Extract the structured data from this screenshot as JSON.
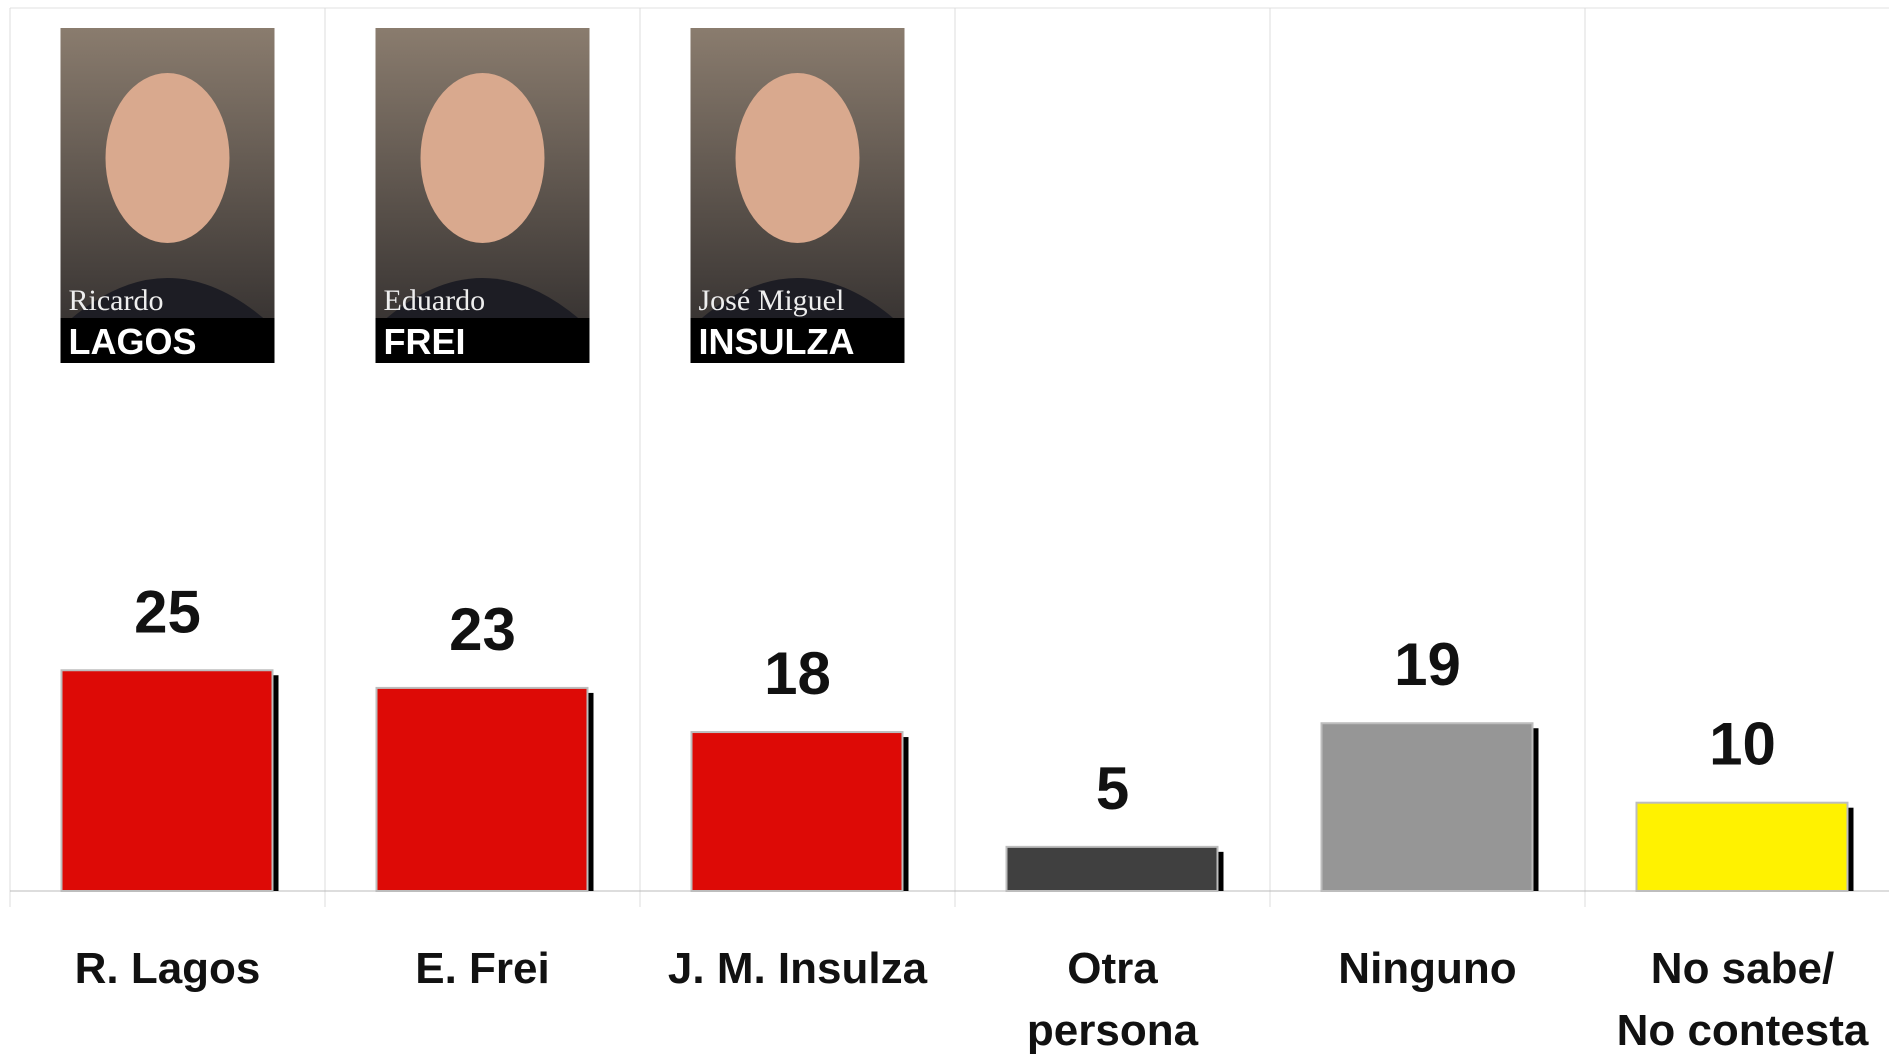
{
  "chart_data": {
    "type": "bar",
    "categories": [
      "R. Lagos",
      "E. Frei",
      "J. M. Insulza",
      "Otra\npersona",
      "Ninguno",
      "No sabe/\nNo contesta"
    ],
    "values": [
      25,
      23,
      18,
      5,
      19,
      10
    ],
    "colors": [
      "#dd0a06",
      "#dd0a06",
      "#dd0a06",
      "#404040",
      "#969696",
      "#fff200"
    ],
    "ylim": [
      0,
      100
    ],
    "photos": [
      {
        "first": "Ricardo",
        "last": "LAGOS"
      },
      {
        "first": "Eduardo",
        "last": "FREI"
      },
      {
        "first": "José Miguel",
        "last": "INSULZA"
      }
    ]
  }
}
